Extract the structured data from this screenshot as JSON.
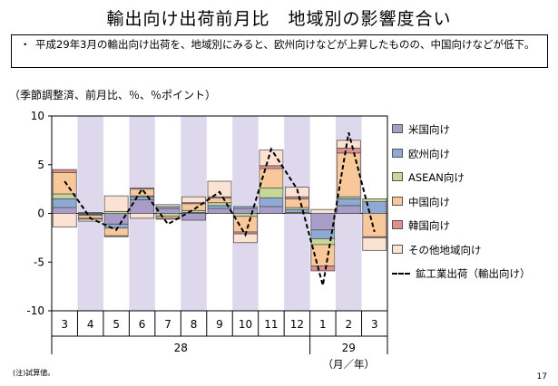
{
  "title": "輸出向け出荷前月比　地域別の影響度合い",
  "note": {
    "bullet": "・",
    "text": "平成29年3月の輸出向け出荷を、地域別にみると、欧州向けなどが上昇したものの、中国向けなどが低下。"
  },
  "units_label": "（季節調整済、前月比、％、％ポイント）",
  "footnote": "(注)試算値。",
  "page_number": "17",
  "colors": {
    "us": "#a89cc8",
    "eu": "#8eaad4",
    "asean": "#c5d89a",
    "china": "#f8c79a",
    "korea": "#e08f8f",
    "other": "#fce2d3",
    "shade": "#ddd8ec",
    "line": "#000000"
  },
  "chart_data": {
    "type": "bar",
    "stacked": true,
    "ylim": [
      -10,
      10
    ],
    "yticks": [
      10,
      5,
      0,
      -5,
      -10
    ],
    "grid": false,
    "legend_position": "right",
    "categories": [
      "3",
      "4",
      "5",
      "6",
      "7",
      "8",
      "9",
      "10",
      "11",
      "12",
      "1",
      "2",
      "3"
    ],
    "year_labels": [
      {
        "label": "28",
        "from": 0,
        "to": 9
      },
      {
        "label": "29",
        "from": 10,
        "to": 12
      }
    ],
    "x_unit_label": "（月／年）",
    "shaded_categories": [
      1,
      3,
      5,
      7,
      9,
      11
    ],
    "series": [
      {
        "name": "米国向け",
        "key": "us",
        "values": [
          0.6,
          0.1,
          -1.1,
          1.4,
          0.5,
          -0.7,
          0.5,
          0.5,
          0.7,
          0.1,
          -1.7,
          0.8,
          0.0
        ]
      },
      {
        "name": "欧州向け",
        "key": "eu",
        "values": [
          0.9,
          -0.1,
          -0.4,
          0.3,
          0.2,
          0.1,
          0.3,
          0.2,
          0.9,
          0.3,
          -0.9,
          0.7,
          1.2
        ]
      },
      {
        "name": "ASEAN向け",
        "key": "asean",
        "values": [
          0.5,
          -0.1,
          0.2,
          0.1,
          -0.3,
          0.2,
          0.3,
          -0.3,
          1.0,
          0.2,
          -0.6,
          0.2,
          0.3
        ]
      },
      {
        "name": "中国向け",
        "key": "china",
        "values": [
          2.2,
          -0.3,
          -0.8,
          0.7,
          -0.2,
          0.7,
          0.5,
          -1.6,
          2.0,
          0.9,
          -2.2,
          4.5,
          -2.4
        ]
      },
      {
        "name": "韓国向け",
        "key": "korea",
        "values": [
          0.3,
          -0.1,
          -0.1,
          0.1,
          -0.1,
          0.1,
          0.1,
          -0.2,
          0.3,
          0.2,
          -0.5,
          0.5,
          -0.1
        ]
      },
      {
        "name": "その他地域向け",
        "key": "other",
        "values": [
          -1.4,
          -0.2,
          1.6,
          -0.5,
          0.2,
          0.6,
          1.6,
          -0.9,
          1.6,
          1.0,
          0.4,
          0.8,
          -1.3
        ]
      }
    ],
    "line": {
      "name": "鉱工業出荷（輸出向け）",
      "key": "line",
      "values": [
        3.3,
        -0.5,
        -1.7,
        2.5,
        -1.1,
        0.4,
        2.2,
        -2.2,
        6.6,
        2.5,
        -7.4,
        8.3,
        -1.9
      ]
    }
  }
}
